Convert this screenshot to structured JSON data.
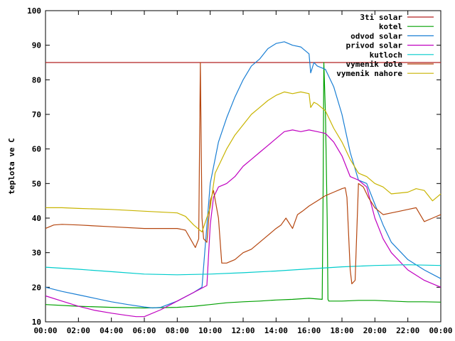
{
  "chart_data": {
    "type": "line",
    "xlabel": "",
    "ylabel": "teplota ve C",
    "xlim": [
      0,
      24
    ],
    "ylim": [
      10,
      100
    ],
    "grid": false,
    "legend_position": "top-right",
    "xticks": [
      {
        "v": 0,
        "label": "00:00"
      },
      {
        "v": 2,
        "label": "02:00"
      },
      {
        "v": 4,
        "label": "04:00"
      },
      {
        "v": 6,
        "label": "06:00"
      },
      {
        "v": 8,
        "label": "08:00"
      },
      {
        "v": 10,
        "label": "10:00"
      },
      {
        "v": 12,
        "label": "12:00"
      },
      {
        "v": 14,
        "label": "14:00"
      },
      {
        "v": 16,
        "label": "16:00"
      },
      {
        "v": 18,
        "label": "18:00"
      },
      {
        "v": 20,
        "label": "20:00"
      },
      {
        "v": 22,
        "label": "22:00"
      },
      {
        "v": 24,
        "label": "00:00"
      }
    ],
    "yticks": [
      {
        "v": 10,
        "label": "10"
      },
      {
        "v": 20,
        "label": "20"
      },
      {
        "v": 30,
        "label": "30"
      },
      {
        "v": 40,
        "label": "40"
      },
      {
        "v": 50,
        "label": "50"
      },
      {
        "v": 60,
        "label": "60"
      },
      {
        "v": 70,
        "label": "70"
      },
      {
        "v": 80,
        "label": "80"
      },
      {
        "v": 90,
        "label": "90"
      },
      {
        "v": 100,
        "label": "100"
      }
    ],
    "series": [
      {
        "name": "3ti solar",
        "color": "#b22222",
        "x": [
          0,
          24
        ],
        "y": [
          85,
          85
        ]
      },
      {
        "name": "kotel",
        "color": "#00a000",
        "x": [
          0,
          2,
          4,
          6,
          8,
          9,
          10,
          11,
          12,
          13,
          14,
          15,
          16,
          16.8,
          16.85,
          16.9,
          17.0,
          17.1,
          17.15,
          17.2,
          18,
          19,
          20,
          21,
          22,
          23,
          24
        ],
        "y": [
          15,
          14.5,
          14.2,
          14,
          14.2,
          14.5,
          15,
          15.5,
          15.8,
          16,
          16.3,
          16.5,
          16.8,
          16.5,
          45,
          85,
          70,
          40,
          16.5,
          16,
          16,
          16.2,
          16.2,
          16,
          15.8,
          15.8,
          15.7
        ]
      },
      {
        "name": "odvod solar",
        "color": "#1a7fd4",
        "x": [
          0,
          1,
          2,
          3,
          4,
          5,
          6,
          6.5,
          7,
          8,
          9,
          9.5,
          10,
          10.5,
          11,
          11.5,
          12,
          12.5,
          13,
          13.5,
          14,
          14.5,
          15,
          15.5,
          16,
          16.1,
          16.3,
          16.5,
          17,
          17.5,
          18,
          18.5,
          19,
          19.5,
          20,
          20.5,
          21,
          22,
          23,
          24
        ],
        "y": [
          20,
          18.8,
          17.8,
          16.8,
          15.8,
          15,
          14.3,
          14,
          14.2,
          16,
          18.5,
          20,
          50,
          62,
          69,
          75,
          80,
          84,
          86,
          89,
          90.5,
          91,
          90,
          89.5,
          87.5,
          82,
          85,
          84,
          83,
          78,
          70,
          59,
          51,
          50,
          44,
          38,
          33,
          28,
          25,
          22.5
        ]
      },
      {
        "name": "privod solar",
        "color": "#c000c0",
        "x": [
          0,
          1,
          2,
          3,
          4,
          5,
          5.5,
          6,
          7,
          8,
          9,
          9.8,
          10,
          10.2,
          10.5,
          11,
          11.5,
          12,
          12.5,
          13,
          13.5,
          14,
          14.5,
          15,
          15.5,
          16,
          16.5,
          17,
          17.5,
          18,
          18.5,
          19,
          19.5,
          20,
          20.5,
          21,
          22,
          23,
          24
        ],
        "y": [
          17.5,
          16,
          14.5,
          13.3,
          12.5,
          11.8,
          11.5,
          11.5,
          13.5,
          16,
          18.5,
          20.5,
          38,
          46,
          49,
          50,
          52,
          55,
          57,
          59,
          61,
          63,
          65,
          65.5,
          65,
          65.5,
          65,
          64.5,
          62,
          58,
          52,
          51,
          49,
          40,
          34,
          30,
          25,
          22,
          20
        ]
      },
      {
        "name": "kutloch",
        "color": "#00cccc",
        "x": [
          0,
          2,
          4,
          6,
          8,
          10,
          12,
          14,
          16,
          18,
          20,
          22,
          24
        ],
        "y": [
          25.8,
          25.2,
          24.5,
          23.8,
          23.6,
          23.8,
          24.2,
          24.7,
          25.3,
          25.9,
          26.3,
          26.5,
          26.3
        ]
      },
      {
        "name": "vymenik dole",
        "color": "#b5460f",
        "x": [
          0,
          0.5,
          1,
          2,
          4,
          6,
          8,
          8.5,
          9.1,
          9.3,
          9.4,
          9.5,
          9.6,
          9.7,
          9.8,
          10,
          10.2,
          10.5,
          10.7,
          11,
          11.5,
          12,
          12.5,
          13,
          13.5,
          14,
          14.3,
          14.6,
          15,
          15.3,
          15.6,
          16,
          16.5,
          17,
          17.5,
          18,
          18.2,
          18.3,
          18.5,
          18.6,
          18.8,
          19,
          19.3,
          19.6,
          20,
          20.5,
          21,
          21.5,
          22,
          22.5,
          23,
          23.5,
          24
        ],
        "y": [
          37,
          38,
          38.2,
          38,
          37.5,
          37,
          37,
          36.5,
          31.5,
          34,
          85,
          40,
          34,
          33.5,
          33,
          45,
          48,
          40,
          27,
          27,
          28,
          30,
          31,
          33,
          35,
          37,
          38,
          40,
          37,
          41,
          42,
          43.5,
          45,
          46.5,
          47.5,
          48.5,
          48.8,
          46,
          25,
          21,
          22,
          50,
          49,
          46,
          43,
          41,
          41.5,
          42,
          42.5,
          43,
          39,
          40,
          41
        ]
      },
      {
        "name": "vymenik nahore",
        "color": "#c8b400",
        "x": [
          0,
          1,
          2,
          4,
          6,
          8,
          8.5,
          9,
          9.5,
          10,
          10.3,
          10.6,
          11,
          11.5,
          12,
          12.5,
          13,
          13.5,
          14,
          14.5,
          15,
          15.5,
          16,
          16.1,
          16.3,
          16.5,
          17,
          17.5,
          18,
          18.5,
          19,
          19.5,
          20,
          20.5,
          21,
          22,
          22.5,
          23,
          23.5,
          24
        ],
        "y": [
          43,
          43,
          42.8,
          42.5,
          42,
          41.5,
          40.5,
          38,
          36,
          43,
          53,
          56,
          60,
          64,
          67,
          70,
          72,
          74,
          75.5,
          76.5,
          76,
          76.5,
          76,
          72,
          73.5,
          73,
          71,
          66,
          62,
          57,
          53,
          52,
          50,
          49,
          47,
          47.5,
          48.5,
          48,
          45,
          47
        ]
      }
    ]
  }
}
